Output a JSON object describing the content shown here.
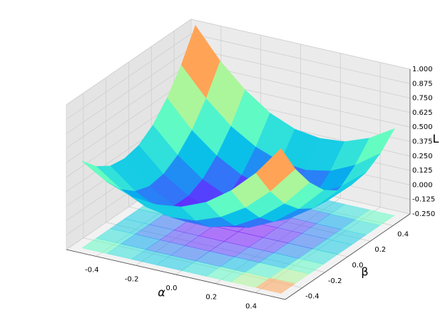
{
  "chart_data": {
    "type": "surface3d",
    "x_label": "α",
    "y_label": "β",
    "z_label": "L",
    "colormap": "rainbow",
    "x": [
      -0.5,
      -0.375,
      -0.25,
      -0.125,
      0,
      0.125,
      0.25,
      0.375,
      0.5
    ],
    "y": [
      -0.5,
      -0.375,
      -0.25,
      -0.125,
      0,
      0.125,
      0.25,
      0.375,
      0.5
    ],
    "z": [
      [
        0.5,
        0.37,
        0.29,
        0.27,
        0.3,
        0.39,
        0.54,
        0.74,
        1.0
      ],
      [
        0.37,
        0.22,
        0.12,
        0.08,
        0.1,
        0.18,
        0.31,
        0.5,
        0.74
      ],
      [
        0.29,
        0.12,
        0.01,
        -0.04,
        -0.04,
        0.02,
        0.14,
        0.31,
        0.54
      ],
      [
        0.27,
        0.08,
        -0.04,
        -0.11,
        -0.12,
        -0.08,
        0.02,
        0.18,
        0.39
      ],
      [
        0.3,
        0.1,
        -0.04,
        -0.12,
        -0.15,
        -0.12,
        -0.04,
        0.1,
        0.3
      ],
      [
        0.39,
        0.18,
        0.02,
        -0.08,
        -0.12,
        -0.11,
        -0.04,
        0.08,
        0.27
      ],
      [
        0.54,
        0.31,
        0.14,
        0.02,
        -0.04,
        -0.04,
        0.01,
        0.12,
        0.29
      ],
      [
        0.74,
        0.5,
        0.31,
        0.18,
        0.1,
        0.08,
        0.12,
        0.22,
        0.37
      ],
      [
        1.0,
        0.74,
        0.54,
        0.39,
        0.3,
        0.27,
        0.29,
        0.37,
        0.5
      ]
    ],
    "xlim": [
      -0.55,
      0.55
    ],
    "ylim": [
      -0.55,
      0.55
    ],
    "zlim": [
      -0.25,
      1.0
    ],
    "xticks": [
      -0.4,
      -0.2,
      {
        "value": 0,
        "label": "0.0"
      },
      0.2,
      0.4
    ],
    "yticks": [
      -0.4,
      -0.2,
      {
        "value": 0,
        "label": "0.0"
      },
      0.2,
      0.4
    ],
    "zticks": [
      {
        "value": -0.25,
        "label": "-0.250"
      },
      -0.125,
      {
        "value": 0,
        "label": "0.000"
      },
      0.125,
      {
        "value": 0.25,
        "label": "0.250"
      },
      0.375,
      {
        "value": 0.5,
        "label": "0.500"
      },
      0.625,
      {
        "value": 0.75,
        "label": "0.750"
      },
      0.875,
      {
        "value": 1,
        "label": "1.000"
      }
    ],
    "grid": true
  }
}
